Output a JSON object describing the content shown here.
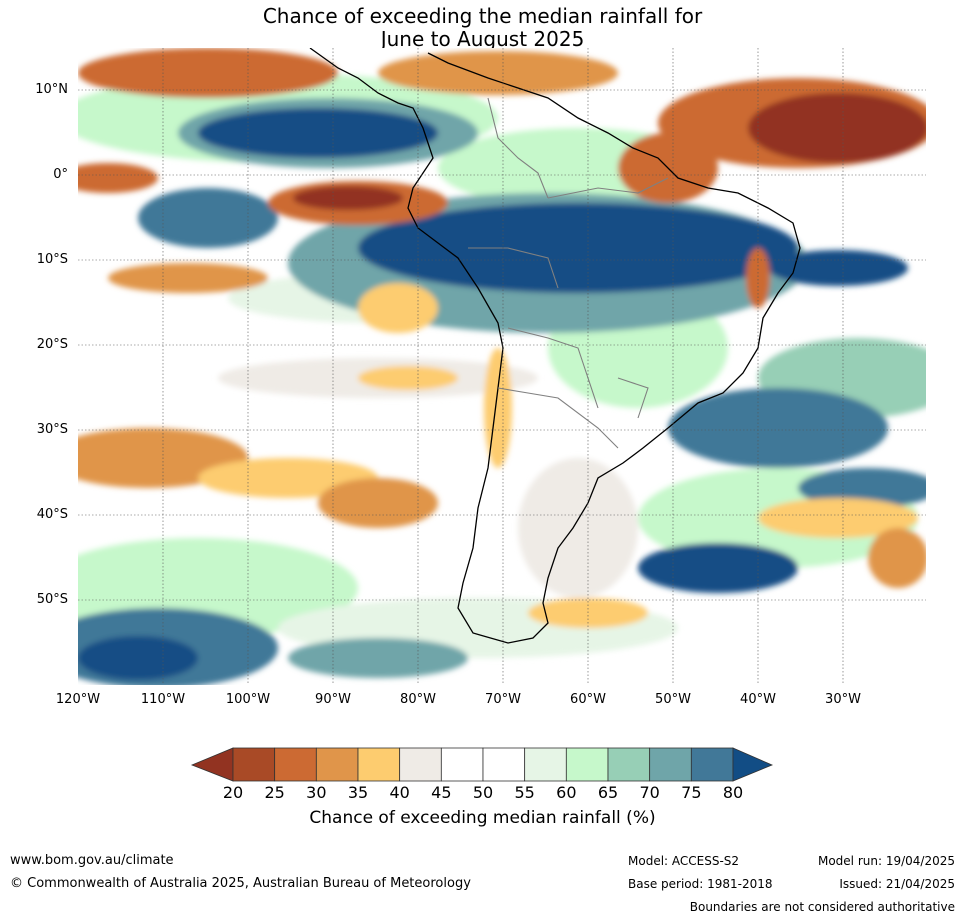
{
  "title": {
    "line1": "Chance of exceeding the median rainfall for",
    "line2": "June to August 2025"
  },
  "map": {
    "lat_labels": [
      "10°N",
      "0°",
      "10°S",
      "20°S",
      "30°S",
      "40°S",
      "50°S"
    ],
    "lon_labels": [
      "120°W",
      "110°W",
      "100°W",
      "90°W",
      "80°W",
      "70°W",
      "60°W",
      "50°W",
      "40°W",
      "30°W"
    ]
  },
  "colorbar": {
    "ticks": [
      "20",
      "25",
      "30",
      "35",
      "40",
      "45",
      "50",
      "55",
      "60",
      "65",
      "70",
      "75",
      "80"
    ],
    "colors": [
      "#a94a26",
      "#cc6a33",
      "#e0954a",
      "#fdcc6f",
      "#efebe6",
      "#ffffff",
      "#ffffff",
      "#e6f5e6",
      "#c6f8cb",
      "#97cfb6",
      "#6fa5a9",
      "#417898"
    ],
    "under_color": "#923321",
    "over_color": "#124d85",
    "label": "Chance of exceeding median rainfall (%)"
  },
  "footer": {
    "website": "www.bom.gov.au/climate",
    "copyright": "© Commonwealth of Australia 2025, Australian Bureau of Meteorology",
    "model": "Model: ACCESS-S2",
    "base_period": "Base period: 1981-2018",
    "model_run": "Model run: 19/04/2025",
    "issued": "Issued: 21/04/2025",
    "disclaimer": "Boundaries are not considered authoritative"
  }
}
